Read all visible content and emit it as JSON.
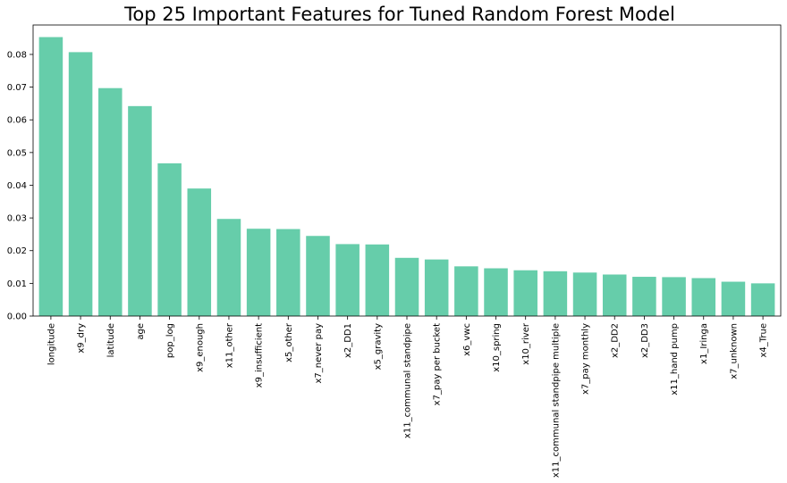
{
  "chart_data": {
    "type": "bar",
    "title": "Top 25 Important Features for Tuned Random Forest Model",
    "xlabel": "",
    "ylabel": "",
    "ylim": [
      0,
      0.089
    ],
    "yticks": [
      "0.00",
      "0.01",
      "0.02",
      "0.03",
      "0.04",
      "0.05",
      "0.06",
      "0.07",
      "0.08"
    ],
    "bar_color": "#66cdaa",
    "grid": false,
    "categories": [
      "longitude",
      "x9_dry",
      "latitude",
      "age",
      "pop_log",
      "x9_enough",
      "x11_other",
      "x9_insufficient",
      "x5_other",
      "x7_never pay",
      "x2_DD1",
      "x5_gravity",
      "x11_communal standpipe",
      "x7_pay per bucket",
      "x6_vwc",
      "x10_spring",
      "x10_river",
      "x11_communal standpipe multiple",
      "x7_pay monthly",
      "x2_DD2",
      "x2_DD3",
      "x11_hand pump",
      "x1_Iringa",
      "x7_unknown",
      "x4_True"
    ],
    "values": [
      0.0853,
      0.0807,
      0.0697,
      0.0642,
      0.0467,
      0.039,
      0.0297,
      0.0267,
      0.0266,
      0.0245,
      0.022,
      0.0219,
      0.0178,
      0.0173,
      0.0152,
      0.0146,
      0.014,
      0.0137,
      0.0133,
      0.0127,
      0.012,
      0.0119,
      0.0116,
      0.0105,
      0.01
    ]
  }
}
